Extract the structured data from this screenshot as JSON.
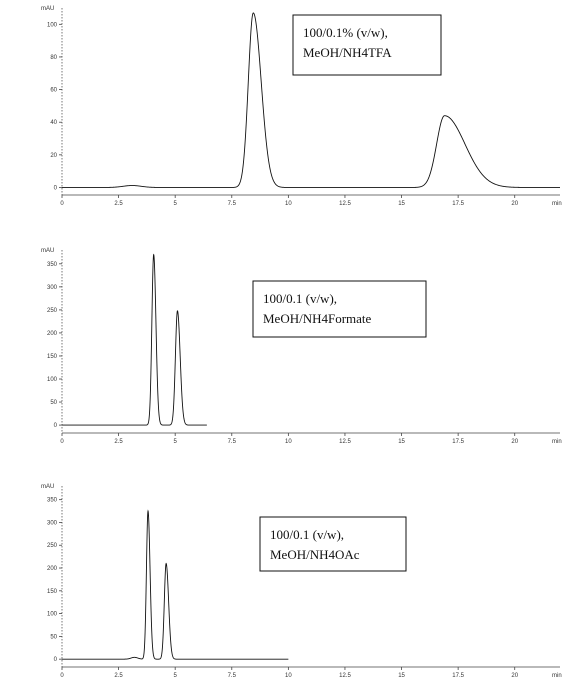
{
  "chart_data": [
    {
      "type": "line",
      "ylabel": "mAU",
      "xunit": "min",
      "xlim": [
        0,
        22
      ],
      "ylim": [
        -4,
        110
      ],
      "x_ticks": [
        0,
        2.5,
        5,
        7.5,
        10,
        12.5,
        15,
        17.5,
        20
      ],
      "x_tick_labels": [
        "0",
        "2.5",
        "5",
        "7.5",
        "10",
        "12.5",
        "15",
        "17.5",
        "20"
      ],
      "y_ticks": [
        0,
        20,
        40,
        60,
        80,
        100
      ],
      "y_tick_labels": [
        "0",
        "20",
        "40",
        "60",
        "80",
        "100"
      ],
      "legend": [
        "100/0.1% (v/w),",
        "MeOH/NH4TFA"
      ],
      "peaks": [
        {
          "t": 3.1,
          "h": 1.2,
          "w": 0.4
        },
        {
          "t": 8.45,
          "h": 107,
          "w": 0.22,
          "tail": 0.35
        },
        {
          "t": 16.9,
          "h": 44,
          "w": 0.35,
          "tail": 0.9
        }
      ],
      "trace_range": [
        0,
        22
      ],
      "baseline": 0
    },
    {
      "type": "line",
      "ylabel": "mAU",
      "xunit": "min",
      "xlim": [
        0,
        22
      ],
      "ylim": [
        -15,
        380
      ],
      "x_ticks": [
        0,
        2.5,
        5,
        7.5,
        10,
        12.5,
        15,
        17.5,
        20
      ],
      "x_tick_labels": [
        "0",
        "2.5",
        "5",
        "7.5",
        "10",
        "12.5",
        "15",
        "17.5",
        "20"
      ],
      "y_ticks": [
        0,
        50,
        100,
        150,
        200,
        250,
        300,
        350
      ],
      "y_tick_labels": [
        "0",
        "50",
        "100",
        "150",
        "200",
        "250",
        "300",
        "350"
      ],
      "legend": [
        "100/0.1 (v/w),",
        "MeOH/NH4Formate"
      ],
      "peaks": [
        {
          "t": 4.05,
          "h": 370,
          "w": 0.08,
          "tail": 0.1
        },
        {
          "t": 5.1,
          "h": 248,
          "w": 0.09,
          "tail": 0.12
        }
      ],
      "trace_range": [
        0,
        6.4
      ],
      "baseline": 0
    },
    {
      "type": "line",
      "ylabel": "mAU",
      "xunit": "min",
      "xlim": [
        0,
        22
      ],
      "ylim": [
        -15,
        380
      ],
      "x_ticks": [
        0,
        2.5,
        5,
        7.5,
        10,
        12.5,
        15,
        17.5,
        20
      ],
      "x_tick_labels": [
        "0",
        "2.5",
        "5",
        "7.5",
        "10",
        "12.5",
        "15",
        "17.5",
        "20"
      ],
      "y_ticks": [
        0,
        50,
        100,
        150,
        200,
        250,
        300,
        350
      ],
      "y_tick_labels": [
        "0",
        "50",
        "100",
        "150",
        "200",
        "250",
        "300",
        "350"
      ],
      "legend": [
        "100/0.1 (v/w),",
        "MeOH/NH4OAc"
      ],
      "peaks": [
        {
          "t": 3.2,
          "h": 4,
          "w": 0.15
        },
        {
          "t": 3.8,
          "h": 325,
          "w": 0.07,
          "tail": 0.09
        },
        {
          "t": 4.6,
          "h": 210,
          "w": 0.08,
          "tail": 0.11
        }
      ],
      "trace_range": [
        0,
        10
      ],
      "baseline": 0
    }
  ]
}
